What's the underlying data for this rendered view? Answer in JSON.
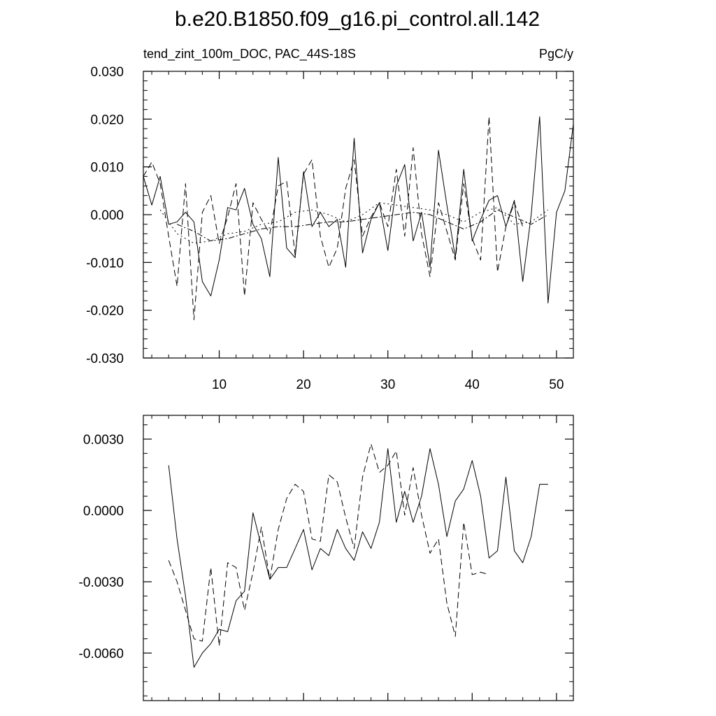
{
  "figure": {
    "title": "b.e20.B1850.f09_g16.pi_control.all.142",
    "left_label": "tend_zint_100m_DOC, PAC_44S-18S",
    "right_label": "PgC/y"
  },
  "chart_data": [
    {
      "type": "line",
      "xlim": [
        1,
        52
      ],
      "ylim": [
        -0.03,
        0.03
      ],
      "x_ticks": [
        10,
        20,
        30,
        40,
        50
      ],
      "y_ticks": [
        {
          "value": -0.03,
          "label": "-0.030"
        },
        {
          "value": -0.02,
          "label": "-0.020"
        },
        {
          "value": -0.01,
          "label": "-0.010"
        },
        {
          "value": 0.0,
          "label": "0.000"
        },
        {
          "value": 0.01,
          "label": "0.010"
        },
        {
          "value": 0.02,
          "label": "0.020"
        },
        {
          "value": 0.03,
          "label": "0.030"
        }
      ],
      "grid": false,
      "series": [
        {
          "style": "solid",
          "x": [
            1,
            2,
            3,
            4,
            5,
            6,
            7,
            8,
            9,
            10,
            11,
            12,
            13,
            14,
            15,
            16,
            17,
            18,
            19,
            20,
            21,
            22,
            23,
            24,
            25,
            26,
            27,
            28,
            29,
            30,
            31,
            32,
            33,
            34,
            35,
            36,
            37,
            38,
            39,
            40,
            41,
            42,
            43,
            44,
            45,
            46,
            47,
            48,
            49,
            50,
            51,
            52
          ],
          "y": [
            0.008,
            0.002,
            0.008,
            -0.002,
            -0.0015,
            0.0005,
            -0.0015,
            -0.014,
            -0.017,
            -0.0095,
            0.0015,
            0.001,
            0.0055,
            -0.002,
            -0.005,
            -0.013,
            0.012,
            -0.007,
            -0.009,
            0.009,
            -0.0025,
            0.0005,
            -0.0025,
            -0.001,
            -0.011,
            0.016,
            -0.008,
            -0.001,
            0.0025,
            -0.0075,
            0.006,
            0.0105,
            -0.0055,
            0.0005,
            -0.011,
            0.0135,
            0.002,
            -0.009,
            0.0095,
            -0.0055,
            -0.001,
            0.003,
            0.004,
            -0.0025,
            0.003,
            -0.014,
            0.0,
            0.0205,
            -0.0185,
            0.0005,
            0.005,
            0.019
          ]
        },
        {
          "style": "dashed",
          "x": [
            1,
            2,
            3,
            4,
            5,
            6,
            7,
            8,
            9,
            10,
            11,
            12,
            13,
            14,
            15,
            16,
            17,
            18,
            19,
            20,
            21,
            22,
            23,
            24,
            25,
            26,
            27,
            28,
            29,
            30,
            31,
            32,
            33,
            34,
            35,
            36,
            37,
            38,
            39,
            40,
            41,
            42,
            43,
            44,
            45,
            46
          ],
          "y": [
            0.008,
            0.011,
            0.0065,
            -0.0045,
            -0.015,
            0.0065,
            -0.022,
            0.0005,
            0.004,
            -0.006,
            -0.0005,
            0.0065,
            -0.017,
            0.0025,
            -0.001,
            -0.004,
            0.006,
            0.007,
            -0.0085,
            0.0085,
            0.0115,
            -0.0045,
            -0.011,
            -0.007,
            0.0055,
            0.0115,
            -0.0045,
            -0.0005,
            0.0025,
            -0.0025,
            0.0095,
            -0.0045,
            0.014,
            -0.004,
            -0.013,
            0.0025,
            -0.0035,
            -0.0095,
            0.0065,
            -0.005,
            -0.0095,
            0.0205,
            -0.012,
            -0.0025,
            0.0025,
            -0.0025
          ]
        },
        {
          "style": "dotted",
          "x": [
            3,
            5,
            7,
            9,
            11,
            13,
            15,
            17,
            19,
            21,
            23,
            25,
            27,
            29,
            31,
            33,
            35,
            37,
            39,
            41,
            43,
            45,
            47,
            49
          ],
          "y": [
            0.001,
            -0.004,
            -0.006,
            -0.0055,
            -0.004,
            -0.0035,
            -0.002,
            -0.0015,
            0.0005,
            0.001,
            0.0,
            -0.0015,
            0.0,
            0.0025,
            0.002,
            0.0015,
            0.001,
            0.0,
            -0.0015,
            0.0005,
            0.0015,
            -0.002,
            -0.0015,
            0.001
          ]
        },
        {
          "style": "dashdot",
          "x": [
            5,
            7,
            9,
            11,
            13,
            15,
            17,
            19,
            21,
            23,
            25,
            27,
            29,
            31,
            33,
            35,
            37,
            39,
            41,
            43,
            45,
            47,
            49
          ],
          "y": [
            -0.002,
            -0.0035,
            -0.0055,
            -0.005,
            -0.004,
            -0.003,
            -0.0025,
            -0.0025,
            -0.002,
            -0.0015,
            -0.0015,
            -0.001,
            -0.0005,
            0.0,
            0.0005,
            0.0,
            -0.0015,
            -0.003,
            -0.0015,
            0.001,
            -0.0005,
            -0.002,
            0.0
          ]
        }
      ]
    },
    {
      "type": "line",
      "xlim": [
        1,
        52
      ],
      "ylim": [
        -0.008,
        0.004
      ],
      "x_ticks": [
        10,
        20,
        30,
        40,
        50
      ],
      "y_ticks": [
        {
          "value": -0.006,
          "label": "-0.0060"
        },
        {
          "value": -0.003,
          "label": "-0.0030"
        },
        {
          "value": 0.0,
          "label": "0.0000"
        },
        {
          "value": 0.003,
          "label": "0.0030"
        }
      ],
      "grid": false,
      "series": [
        {
          "style": "solid",
          "x": [
            4,
            5,
            6,
            7,
            8,
            9,
            10,
            11,
            12,
            13,
            14,
            15,
            16,
            17,
            18,
            19,
            20,
            21,
            22,
            23,
            24,
            25,
            26,
            27,
            28,
            29,
            30,
            31,
            32,
            33,
            34,
            35,
            36,
            37,
            38,
            39,
            40,
            41,
            42,
            43,
            44,
            45,
            46,
            47,
            48,
            49
          ],
          "y": [
            0.0019,
            -0.0012,
            -0.0036,
            -0.0066,
            -0.006,
            -0.0056,
            -0.005,
            -0.0051,
            -0.0038,
            -0.0034,
            -0.0001,
            -0.0015,
            -0.0029,
            -0.0024,
            -0.0024,
            -0.0016,
            -0.0008,
            -0.0025,
            -0.0016,
            -0.0019,
            -0.0008,
            -0.0016,
            -0.0021,
            -0.0009,
            -0.0016,
            -0.0005,
            0.0026,
            -0.0005,
            0.0008,
            -0.0005,
            0.0006,
            0.0026,
            0.0011,
            -0.0011,
            0.0004,
            0.0009,
            0.0021,
            0.0006,
            -0.002,
            -0.0017,
            0.0014,
            -0.0017,
            -0.0022,
            -0.0011,
            0.0011,
            0.0011
          ]
        },
        {
          "style": "dashed",
          "x": [
            4,
            5,
            6,
            7,
            8,
            9,
            10,
            11,
            12,
            13,
            14,
            15,
            16,
            17,
            18,
            19,
            20,
            21,
            22,
            23,
            24,
            25,
            26,
            27,
            28,
            29,
            30,
            31,
            32,
            33,
            34,
            35,
            36,
            37,
            38,
            39,
            40,
            41,
            42
          ],
          "y": [
            -0.0021,
            -0.003,
            -0.0042,
            -0.0054,
            -0.0055,
            -0.0024,
            -0.0057,
            -0.0022,
            -0.0024,
            -0.0042,
            -0.0026,
            -0.0007,
            -0.0029,
            -0.0008,
            0.0005,
            0.0011,
            0.0008,
            -0.0012,
            -0.0013,
            0.0015,
            0.0012,
            -0.0003,
            -0.0016,
            0.0014,
            0.0028,
            0.0016,
            0.0019,
            0.0025,
            -0.0002,
            0.0018,
            -0.0002,
            -0.0018,
            -0.0012,
            -0.0039,
            -0.0053,
            -0.0005,
            -0.0027,
            -0.0026,
            -0.0027
          ]
        }
      ]
    }
  ]
}
